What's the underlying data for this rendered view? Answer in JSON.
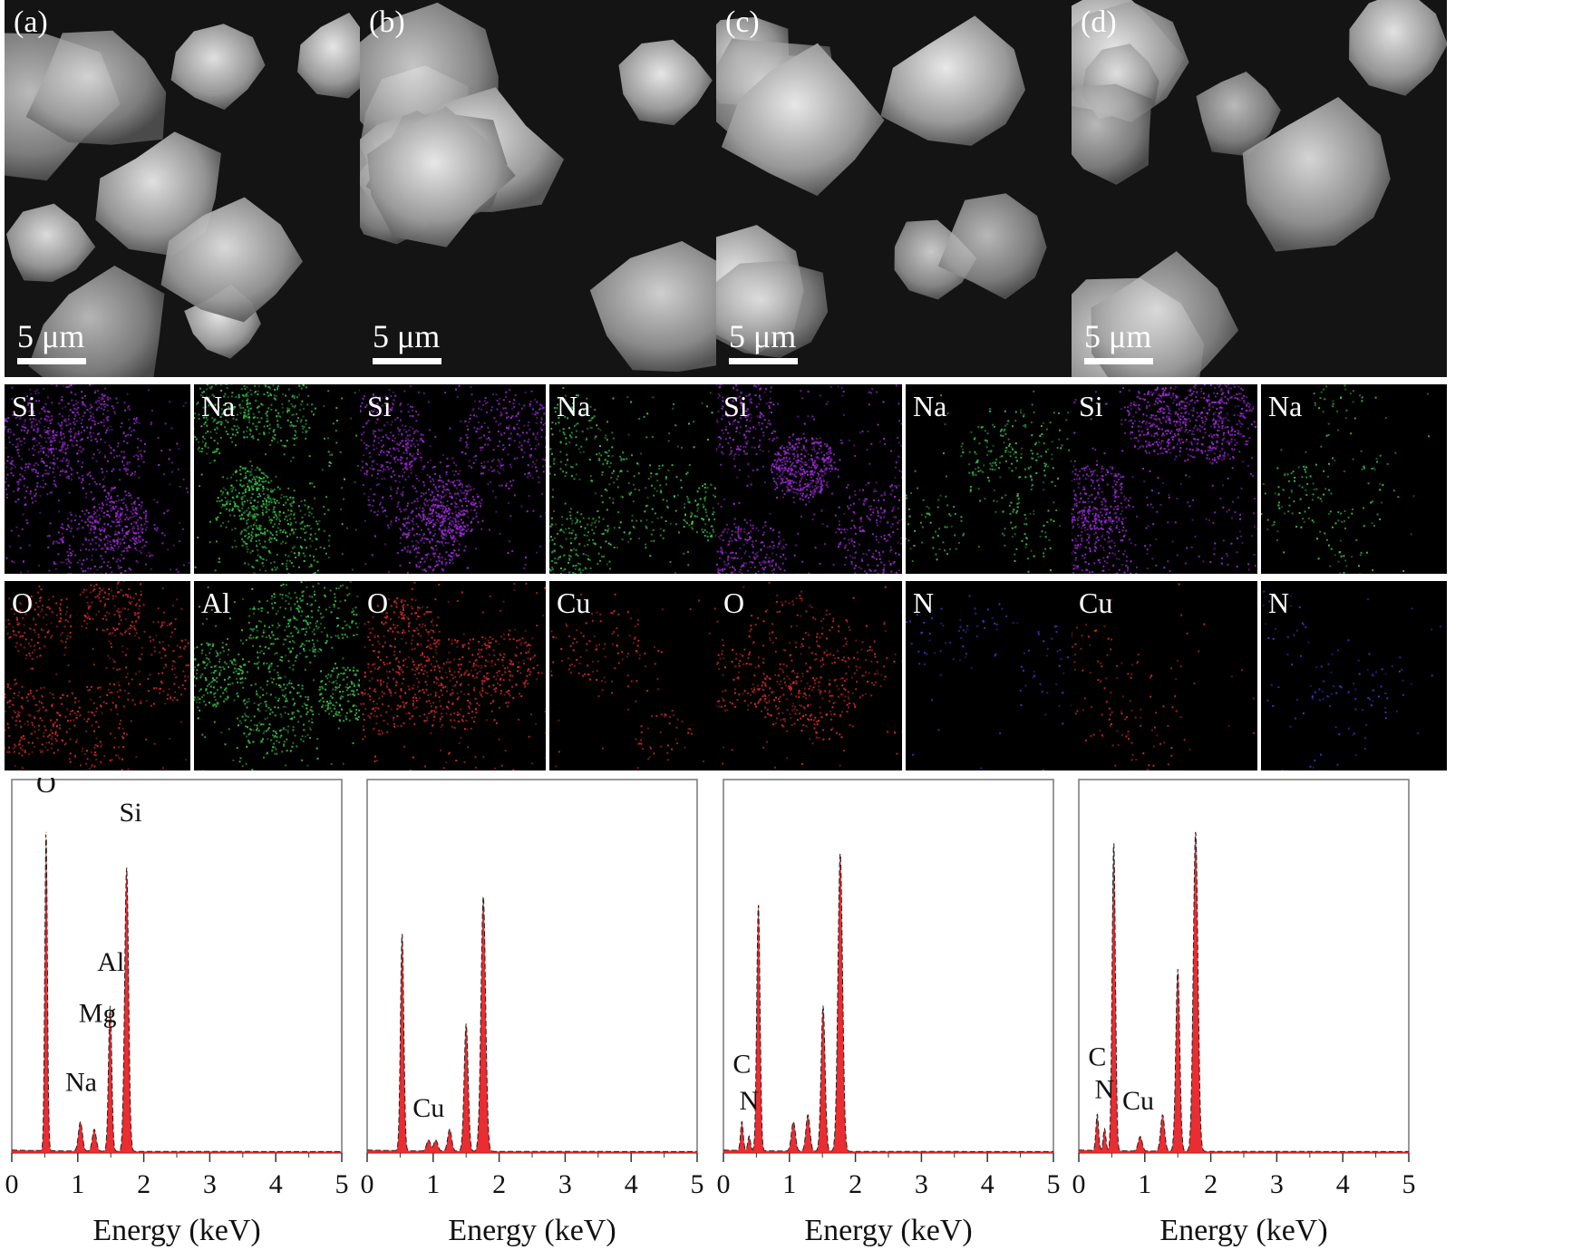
{
  "panels": [
    {
      "id": "a",
      "label": "(a)",
      "scale_bar": "5 μm",
      "maps": [
        "Si",
        "Na",
        "O",
        "Al"
      ],
      "map_colors": [
        "#9b2bd6",
        "#39c24a",
        "#d42a2a",
        "#39c24a"
      ],
      "map_densities": [
        0.9,
        0.7,
        0.5,
        0.7
      ],
      "chart_data": {
        "type": "line",
        "xlabel": "Energy (keV)",
        "xlim": [
          0,
          5
        ],
        "x_ticks": [
          "0",
          "1",
          "2",
          "3",
          "4",
          "5"
        ],
        "series_color": "#e8161b",
        "peaks": [
          {
            "x": 0.52,
            "y": 0.88,
            "w": 0.02
          },
          {
            "x": 1.04,
            "y": 0.08,
            "w": 0.03
          },
          {
            "x": 1.25,
            "y": 0.06,
            "w": 0.03
          },
          {
            "x": 1.49,
            "y": 0.4,
            "w": 0.025
          },
          {
            "x": 1.74,
            "y": 0.78,
            "w": 0.03
          }
        ],
        "annotations": [
          {
            "text": "O",
            "x": 0.52,
            "y": 0.99
          },
          {
            "text": "Si",
            "x": 1.8,
            "y": 0.91
          },
          {
            "text": "Al",
            "x": 1.5,
            "y": 0.5
          },
          {
            "text": "Mg",
            "x": 1.3,
            "y": 0.36
          },
          {
            "text": "Na",
            "x": 1.05,
            "y": 0.17
          }
        ]
      }
    },
    {
      "id": "b",
      "label": "(b)",
      "scale_bar": "5 μm",
      "maps": [
        "Si",
        "Na",
        "O",
        "Cu"
      ],
      "map_colors": [
        "#9b2bd6",
        "#39c24a",
        "#d42a2a",
        "#d42a2a"
      ],
      "map_densities": [
        0.9,
        0.45,
        0.55,
        0.08
      ],
      "chart_data": {
        "type": "line",
        "xlabel": "Energy (keV)",
        "xlim": [
          0,
          5
        ],
        "x_ticks": [
          "0",
          "1",
          "2",
          "3",
          "4",
          "5"
        ],
        "series_color": "#e8161b",
        "peaks": [
          {
            "x": 0.53,
            "y": 0.6,
            "w": 0.025
          },
          {
            "x": 0.93,
            "y": 0.03,
            "w": 0.03
          },
          {
            "x": 1.04,
            "y": 0.03,
            "w": 0.03
          },
          {
            "x": 1.25,
            "y": 0.06,
            "w": 0.03
          },
          {
            "x": 1.5,
            "y": 0.35,
            "w": 0.03
          },
          {
            "x": 1.76,
            "y": 0.7,
            "w": 0.035
          }
        ],
        "annotations": [
          {
            "text": "Cu",
            "x": 0.93,
            "y": 0.1
          }
        ]
      }
    },
    {
      "id": "c",
      "label": "(c)",
      "scale_bar": "5 μm",
      "maps": [
        "Si",
        "Na",
        "O",
        "N"
      ],
      "map_colors": [
        "#9b2bd6",
        "#39c24a",
        "#d42a2a",
        "#3a3ad0"
      ],
      "map_densities": [
        0.9,
        0.2,
        0.35,
        0.04
      ],
      "chart_data": {
        "type": "line",
        "xlabel": "Energy (keV)",
        "xlim": [
          0,
          5
        ],
        "x_ticks": [
          "0",
          "1",
          "2",
          "3",
          "4",
          "5"
        ],
        "series_color": "#e8161b",
        "peaks": [
          {
            "x": 0.28,
            "y": 0.08,
            "w": 0.02
          },
          {
            "x": 0.39,
            "y": 0.04,
            "w": 0.02
          },
          {
            "x": 0.53,
            "y": 0.68,
            "w": 0.025
          },
          {
            "x": 1.06,
            "y": 0.08,
            "w": 0.03
          },
          {
            "x": 1.28,
            "y": 0.1,
            "w": 0.03
          },
          {
            "x": 1.51,
            "y": 0.4,
            "w": 0.03
          },
          {
            "x": 1.77,
            "y": 0.82,
            "w": 0.035
          }
        ],
        "annotations": [
          {
            "text": "C",
            "x": 0.28,
            "y": 0.22
          },
          {
            "text": "N",
            "x": 0.39,
            "y": 0.12
          }
        ]
      }
    },
    {
      "id": "d",
      "label": "(d)",
      "scale_bar": "5 μm",
      "maps": [
        "Si",
        "Na",
        "Cu",
        "N"
      ],
      "map_colors": [
        "#9b2bd6",
        "#39c24a",
        "#d42a2a",
        "#3a3ad0"
      ],
      "map_densities": [
        0.9,
        0.1,
        0.06,
        0.04
      ],
      "chart_data": {
        "type": "line",
        "xlabel": "Energy (keV)",
        "xlim": [
          0,
          5
        ],
        "x_ticks": [
          "0",
          "1",
          "2",
          "3",
          "4",
          "5"
        ],
        "series_color": "#e8161b",
        "peaks": [
          {
            "x": 0.28,
            "y": 0.1,
            "w": 0.02
          },
          {
            "x": 0.39,
            "y": 0.06,
            "w": 0.02
          },
          {
            "x": 0.53,
            "y": 0.85,
            "w": 0.025
          },
          {
            "x": 0.93,
            "y": 0.04,
            "w": 0.03
          },
          {
            "x": 1.27,
            "y": 0.1,
            "w": 0.03
          },
          {
            "x": 1.5,
            "y": 0.5,
            "w": 0.03
          },
          {
            "x": 1.77,
            "y": 0.88,
            "w": 0.035
          }
        ],
        "annotations": [
          {
            "text": "C",
            "x": 0.28,
            "y": 0.24
          },
          {
            "text": "N",
            "x": 0.39,
            "y": 0.15
          },
          {
            "text": "Cu",
            "x": 0.9,
            "y": 0.12
          }
        ]
      }
    }
  ]
}
